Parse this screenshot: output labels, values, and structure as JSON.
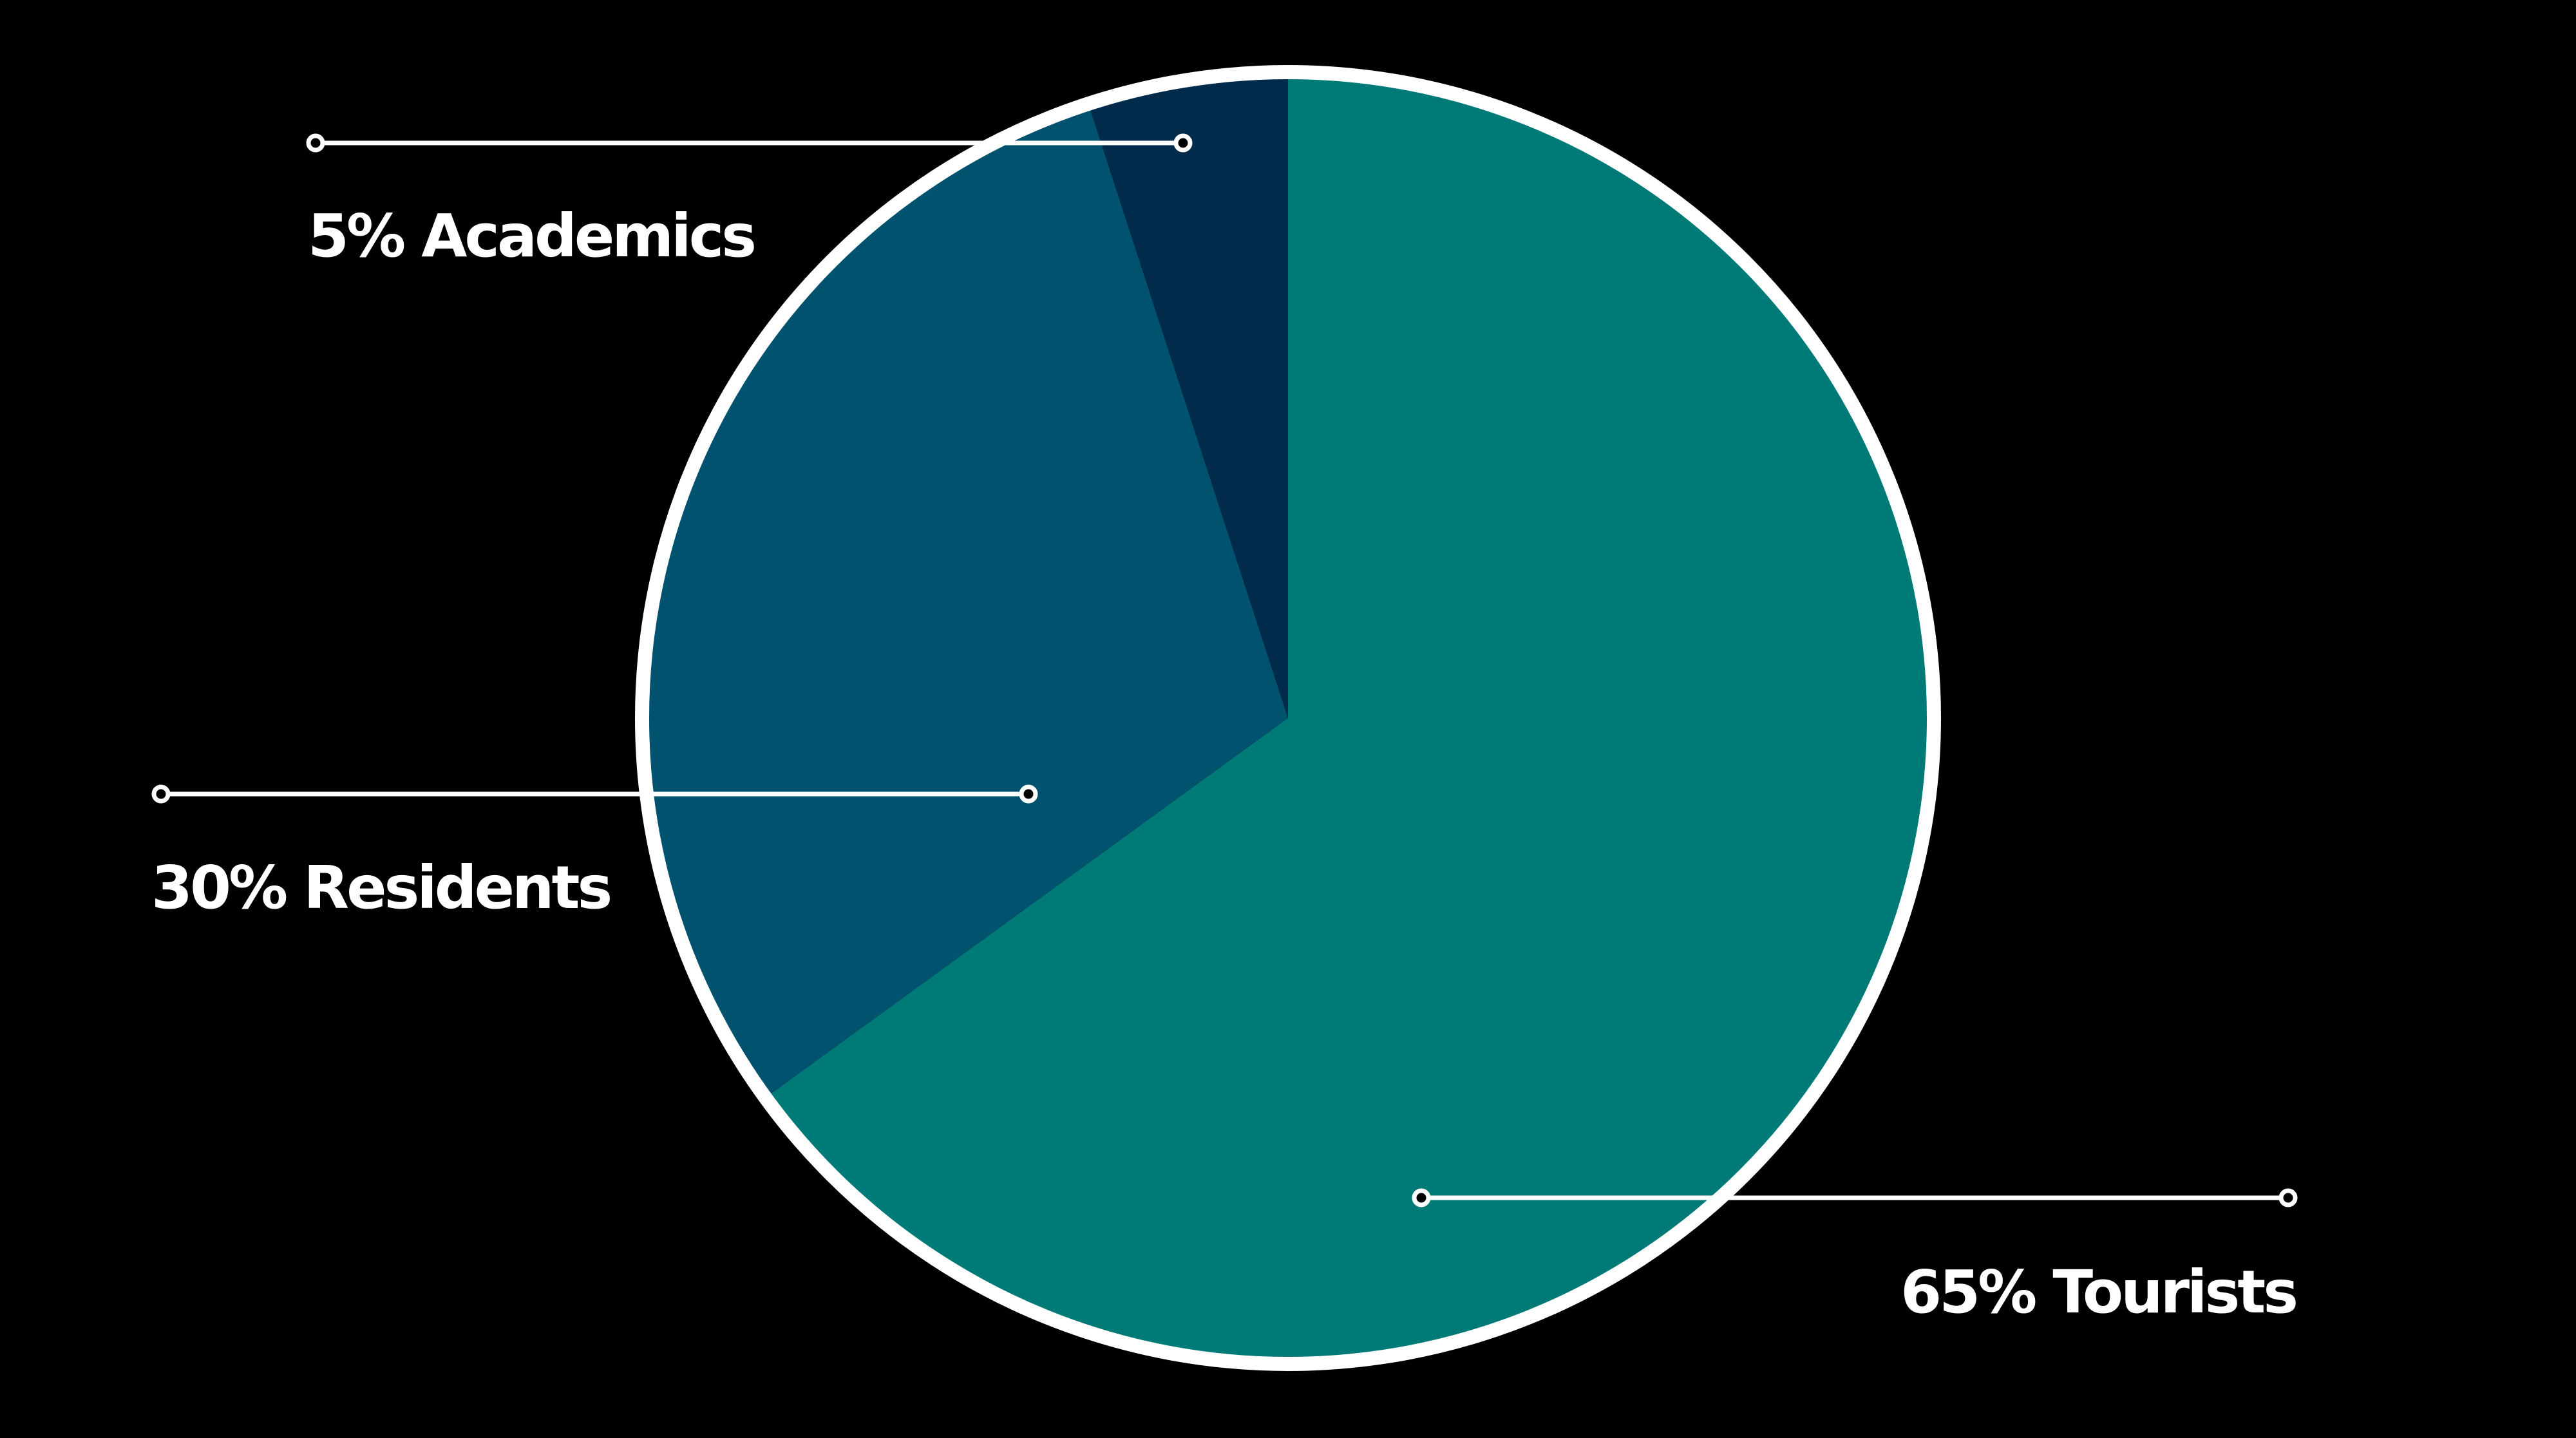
{
  "chart_data": {
    "type": "pie",
    "title": "",
    "slices": [
      {
        "label": "65% Tourists",
        "value": 65,
        "color": "#007A76"
      },
      {
        "label": "30% Residents",
        "value": 30,
        "color": "#00526E"
      },
      {
        "label": "5% Academics",
        "value": 5,
        "color": "#022B4B"
      }
    ],
    "start_angle_deg": 0,
    "direction": "clockwise",
    "outline_color": "#FFFFFF",
    "background": "#000000",
    "text_color": "#FFFFFF"
  }
}
